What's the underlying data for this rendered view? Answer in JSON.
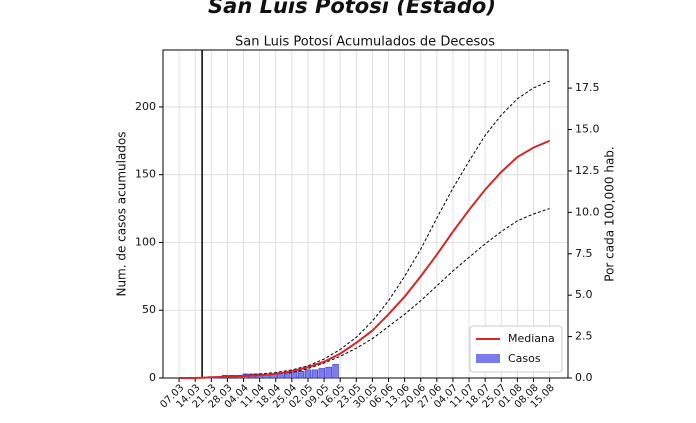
{
  "header": {
    "title": "San Luis Potosí (Estado)"
  },
  "chart_data": {
    "type": "line",
    "title": "San Luis Potosí Acumulados de Decesos",
    "ylabel": "Num. de casos acumulados",
    "y2label": "Por cada 100,000 hab.",
    "xlim": [
      -7,
      169
    ],
    "xticks": [
      {
        "value": 0,
        "label": "07.03"
      },
      {
        "value": 7,
        "label": "14.03"
      },
      {
        "value": 14,
        "label": "21.03"
      },
      {
        "value": 21,
        "label": "28.03"
      },
      {
        "value": 28,
        "label": "04.04"
      },
      {
        "value": 35,
        "label": "11.04"
      },
      {
        "value": 42,
        "label": "18.04"
      },
      {
        "value": 49,
        "label": "25.04"
      },
      {
        "value": 56,
        "label": "02.05"
      },
      {
        "value": 63,
        "label": "09.05"
      },
      {
        "value": 70,
        "label": "16.05"
      },
      {
        "value": 77,
        "label": "23.05"
      },
      {
        "value": 84,
        "label": "30.05"
      },
      {
        "value": 91,
        "label": "06.06"
      },
      {
        "value": 98,
        "label": "13.06"
      },
      {
        "value": 105,
        "label": "20.06"
      },
      {
        "value": 112,
        "label": "27.06"
      },
      {
        "value": 119,
        "label": "04.07"
      },
      {
        "value": 126,
        "label": "11.07"
      },
      {
        "value": 133,
        "label": "18.07"
      },
      {
        "value": 140,
        "label": "25.07"
      },
      {
        "value": 147,
        "label": "01.08"
      },
      {
        "value": 154,
        "label": "08.08"
      },
      {
        "value": 161,
        "label": "15.08"
      }
    ],
    "ylim": [
      0,
      242
    ],
    "yticks": [
      0,
      50,
      100,
      150,
      200
    ],
    "y2lim": [
      0,
      19.8
    ],
    "y2ticks": [
      {
        "value": 0,
        "label": "0.0"
      },
      2.5,
      {
        "value": 5,
        "label": "5.0"
      },
      7.5,
      {
        "value": 10,
        "label": "10.0"
      },
      12.5,
      {
        "value": 15,
        "label": "15.0"
      },
      17.5
    ],
    "grid": true,
    "vline_x": 10,
    "x": [
      0,
      7,
      14,
      21,
      28,
      35,
      42,
      49,
      56,
      63,
      70,
      77,
      84,
      91,
      98,
      105,
      112,
      119,
      126,
      133,
      140,
      147,
      154,
      161
    ],
    "series": [
      {
        "name": "Mediana",
        "color": "#d62728",
        "values": [
          0,
          0,
          0.5,
          1,
          1.5,
          2,
          3,
          5,
          8,
          12,
          18,
          26,
          35,
          47,
          60,
          75,
          91,
          108,
          124,
          139,
          152,
          163,
          170,
          175
        ]
      }
    ],
    "interval": {
      "color": "#000000",
      "upper": [
        0,
        0,
        0.5,
        1,
        2,
        3,
        4,
        6,
        9,
        14,
        21,
        30,
        42,
        57,
        75,
        95,
        118,
        140,
        160,
        179,
        194,
        206,
        214,
        219
      ],
      "lower": [
        0,
        0,
        0.5,
        1,
        1.5,
        2,
        3,
        4,
        7,
        11,
        16,
        22,
        29,
        38,
        47,
        57,
        68,
        79,
        89,
        99,
        108,
        116,
        121,
        125
      ]
    },
    "bars": {
      "name": "Casos",
      "color": "#7b7bf0",
      "x": [
        14,
        17,
        20,
        23,
        26,
        29,
        32,
        35,
        38,
        41,
        44,
        47,
        50,
        53,
        56,
        59,
        62,
        65,
        68
      ],
      "values": [
        1,
        1,
        2,
        2,
        2,
        3,
        3,
        3,
        3,
        3,
        4,
        4,
        5,
        5,
        6,
        6,
        7,
        8,
        10
      ]
    },
    "legend": "lower right"
  }
}
